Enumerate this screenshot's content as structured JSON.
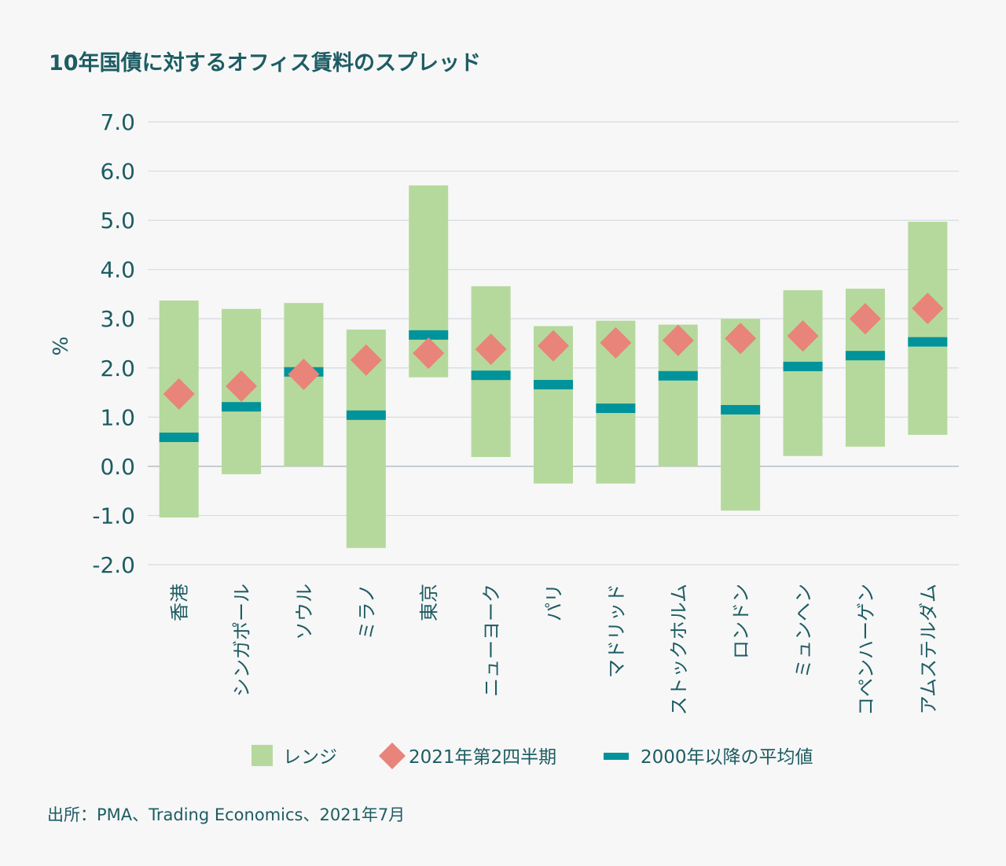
{
  "chart_data": {
    "type": "bar",
    "title": "10年国債に対するオフィス賃料のスプレッド",
    "ylabel": "%",
    "xlabel": "",
    "ylim": [
      -2.0,
      7.0
    ],
    "yticks": [
      "7.0",
      "6.0",
      "5.0",
      "4.0",
      "3.0",
      "2.0",
      "1.0",
      "0.0",
      "-1.0",
      "-2.0"
    ],
    "ytick_values": [
      7,
      6,
      5,
      4,
      3,
      2,
      1,
      0,
      -1,
      -2
    ],
    "grid": true,
    "legend_position": "bottom",
    "categories": [
      "香港",
      "シンガポール",
      "ソウル",
      "ミラノ",
      "東京",
      "ニューヨーク",
      "パリ",
      "マドリッド",
      "ストックホルム",
      "ロンドン",
      "ミュンヘン",
      "コペンハーゲン",
      "アムステルダム"
    ],
    "series": [
      {
        "name": "レンジ",
        "kind": "range",
        "low": [
          -1.04,
          -0.16,
          0.0,
          -1.66,
          1.81,
          0.19,
          -0.35,
          -0.35,
          0.0,
          -0.9,
          0.21,
          0.4,
          0.64
        ],
        "high": [
          3.37,
          3.2,
          3.32,
          2.78,
          5.71,
          3.66,
          2.85,
          2.96,
          2.88,
          3.0,
          3.58,
          3.61,
          4.97
        ]
      },
      {
        "name": "2021年第2四半期",
        "kind": "diamond",
        "values": [
          1.47,
          1.63,
          1.87,
          2.16,
          2.3,
          2.38,
          2.45,
          2.51,
          2.56,
          2.6,
          2.65,
          3.0,
          3.21
        ]
      },
      {
        "name": "2000年以降の平均値",
        "kind": "dash",
        "values": [
          0.59,
          1.21,
          1.92,
          1.04,
          2.67,
          1.85,
          1.66,
          1.18,
          1.84,
          1.15,
          2.03,
          2.25,
          2.53
        ]
      }
    ],
    "colors": {
      "range": "#b5d99c",
      "diamond": "#e8847a",
      "dash": "#00939b",
      "grid": "#d5dbe0",
      "text": "#1d5c63"
    }
  },
  "source": "出所：PMA、Trading Economics、2021年7月"
}
